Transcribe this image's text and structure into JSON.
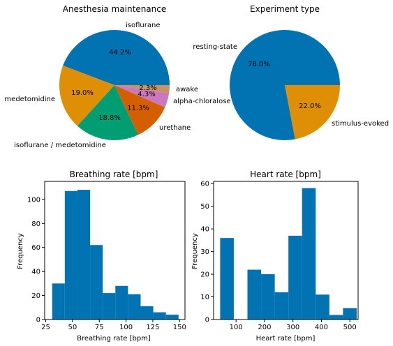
{
  "colors": {
    "blue": "#0173b2",
    "orange": "#de8f05",
    "green": "#029e73",
    "vermillion": "#d55e00",
    "pink": "#cc78bc",
    "tan": "#ca9161"
  },
  "chart_data": [
    {
      "type": "pie",
      "title": "Anesthesia maintenance",
      "start_angle_deg": 0,
      "direction": "counterclockwise",
      "slices": [
        {
          "label": "isoflurane",
          "value": 44.2,
          "pct_label": "44.2%",
          "color": "#0173b2"
        },
        {
          "label": "medetomidine",
          "value": 19.0,
          "pct_label": "19.0%",
          "color": "#de8f05"
        },
        {
          "label": "isoflurane / medetomidine",
          "value": 18.8,
          "pct_label": "18.8%",
          "color": "#029e73"
        },
        {
          "label": "urethane",
          "value": 11.3,
          "pct_label": "11.3%",
          "color": "#d55e00"
        },
        {
          "label": "alpha-chloralose",
          "value": 4.3,
          "pct_label": "4.3%",
          "color": "#cc78bc"
        },
        {
          "label": "awake",
          "value": 2.3,
          "pct_label": "2.3%",
          "color": "#ca9161"
        }
      ]
    },
    {
      "type": "pie",
      "title": "Experiment type",
      "start_angle_deg": 0,
      "direction": "counterclockwise",
      "slices": [
        {
          "label": "resting-state",
          "value": 78.0,
          "pct_label": "78.0%",
          "color": "#0173b2"
        },
        {
          "label": "stimulus-evoked",
          "value": 22.0,
          "pct_label": "22.0%",
          "color": "#de8f05"
        }
      ]
    },
    {
      "type": "bar",
      "subtype": "histogram",
      "title": "Breathing rate [bpm]",
      "xlabel": "Breathing rate [bpm]",
      "ylabel": "Frequency",
      "xlim": [
        24,
        155
      ],
      "ylim": [
        0,
        115
      ],
      "xticks": [
        25,
        50,
        75,
        100,
        125,
        150
      ],
      "yticks": [
        0,
        20,
        40,
        60,
        80,
        100
      ],
      "bin_edges": [
        31,
        42.8,
        54.6,
        66.4,
        78.2,
        90,
        101.8,
        113.6,
        125.4,
        137.2,
        149
      ],
      "values": [
        30,
        107,
        108,
        62,
        22,
        28,
        21,
        11,
        6,
        4
      ],
      "color": "#0173b2"
    },
    {
      "type": "bar",
      "subtype": "histogram",
      "title": "Heart rate [bpm]",
      "xlabel": "Heart rate [bpm]",
      "ylabel": "Frequency",
      "xlim": [
        21,
        529
      ],
      "ylim": [
        0,
        61
      ],
      "xticks": [
        100,
        200,
        300,
        400,
        500
      ],
      "yticks": [
        0,
        10,
        20,
        30,
        40,
        50,
        60
      ],
      "bin_edges": [
        44,
        92,
        140,
        188,
        236,
        284,
        332,
        380,
        428,
        476,
        524
      ],
      "values": [
        36,
        0,
        22,
        20,
        12,
        37,
        58,
        11,
        2,
        5
      ],
      "color": "#0173b2"
    }
  ]
}
